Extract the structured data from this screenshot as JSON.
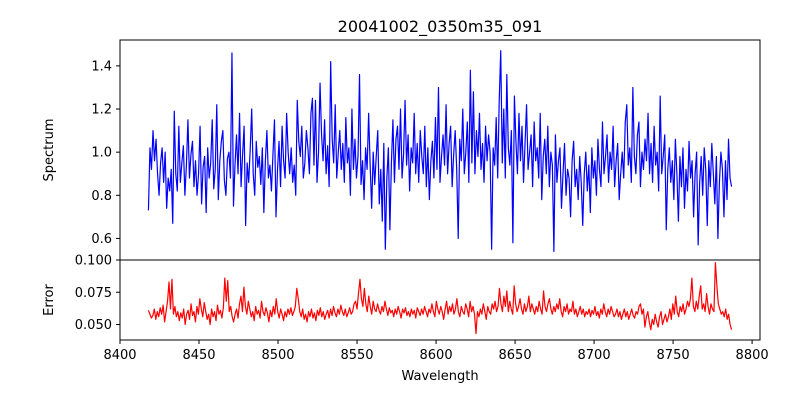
{
  "chart_data": {
    "type": "line",
    "title": "20041002_0350m35_091",
    "xlabel": "Wavelength",
    "xlim": [
      8400,
      8805
    ],
    "x_ticks": [
      8400,
      8450,
      8500,
      8550,
      8600,
      8650,
      8700,
      8750,
      8800
    ],
    "x_tick_labels": [
      "8400",
      "8450",
      "8500",
      "8550",
      "8600",
      "8650",
      "8700",
      "8750",
      "8800"
    ],
    "x_start": 8418,
    "x_end": 8787,
    "grid": false,
    "panels": [
      {
        "name": "spectrum",
        "ylabel": "Spectrum",
        "ylim": [
          0.5,
          1.52
        ],
        "y_ticks": [
          0.6,
          0.8,
          1.0,
          1.2,
          1.4
        ],
        "y_tick_labels": [
          "0.6",
          "0.8",
          "1.0",
          "1.2",
          "1.4"
        ],
        "color": "#0000ff",
        "values": [
          0.73,
          1.02,
          0.92,
          1.1,
          0.96,
          1.06,
          0.9,
          0.8,
          0.95,
          1.02,
          0.86,
          1.0,
          0.74,
          0.88,
          0.82,
          0.92,
          0.67,
          1.19,
          0.9,
          0.82,
          1.12,
          0.86,
          0.95,
          1.03,
          0.8,
          0.94,
          1.15,
          0.88,
          0.99,
          1.05,
          0.84,
          0.96,
          0.8,
          0.9,
          1.12,
          0.76,
          0.93,
          0.98,
          0.72,
          1.02,
          0.88,
          0.95,
          1.15,
          0.83,
          0.92,
          1.22,
          0.78,
          0.96,
          1.05,
          1.1,
          0.87,
          0.8,
          0.97,
          1.0,
          0.88,
          1.46,
          0.75,
          0.94,
          1.08,
          0.9,
          1.18,
          0.84,
          0.99,
          1.12,
          0.66,
          0.95,
          0.86,
          1.01,
          1.2,
          0.9,
          0.8,
          1.05,
          0.93,
          0.98,
          0.85,
          1.02,
          0.72,
          0.96,
          1.1,
          0.88,
          0.94,
          0.82,
          0.99,
          1.15,
          0.7,
          0.92,
          1.05,
          0.84,
          1.12,
          0.96,
          0.88,
          1.18,
          1.0,
          0.9,
          1.02,
          0.86,
          0.94,
          0.8,
          1.24,
          1.05,
          0.98,
          1.12,
          0.88,
          0.95,
          1.1,
          1.02,
          0.9,
          1.18,
          1.25,
          0.94,
          1.24,
          0.86,
          1.0,
          1.32,
          1.08,
          0.96,
          1.15,
          0.9,
          1.03,
          0.84,
          1.42,
          1.06,
          0.95,
          1.22,
          0.88,
          1.0,
          1.1,
          0.92,
          1.04,
          0.86,
          1.16,
          0.95,
          1.02,
          0.8,
          1.2,
          0.92,
          1.06,
          0.88,
          0.98,
          1.36,
          0.85,
          0.96,
          0.78,
          1.02,
          0.92,
          1.18,
          0.94,
          0.74,
          1.0,
          0.85,
          0.98,
          1.1,
          0.76,
          0.92,
          0.68,
          1.04,
          0.55,
          0.88,
          1.02,
          0.64,
          0.95,
          1.15,
          0.86,
          1.06,
          1.12,
          0.92,
          1.2,
          0.88,
          0.99,
          1.24,
          0.94,
          1.08,
          0.82,
          1.02,
          0.95,
          1.18,
          0.9,
          1.04,
          0.86,
          1.1,
          0.98,
          0.9,
          1.12,
          0.84,
          1.02,
          0.78,
          0.96,
          1.05,
          0.88,
          1.16,
          0.92,
          1.3,
          0.86,
          0.98,
          1.08,
          0.94,
          1.22,
          0.9,
          1.04,
          1.12,
          0.84,
          0.99,
          1.1,
          0.92,
          0.6,
          1.06,
          0.96,
          1.2,
          0.9,
          1.0,
          1.14,
          0.86,
          1.38,
          0.95,
          1.28,
          0.9,
          1.1,
          0.98,
          1.18,
          0.92,
          1.04,
          0.86,
          1.12,
          0.96,
          1.08,
          1.0,
          0.55,
          1.02,
          0.94,
          1.16,
          0.88,
          1.24,
          1.47,
          0.95,
          1.2,
          0.88,
          1.36,
          1.02,
          0.94,
          1.1,
          0.58,
          1.26,
          1.05,
          0.9,
          1.18,
          0.96,
          1.12,
          0.86,
          1.04,
          1.22,
          0.92,
          1.0,
          1.08,
          0.84,
          1.14,
          0.96,
          1.02,
          0.88,
          1.18,
          0.78,
          0.98,
          1.06,
          0.9,
          1.12,
          0.84,
          1.0,
          0.94,
          0.54,
          1.08,
          0.86,
          0.96,
          1.02,
          0.74,
          0.9,
          1.04,
          0.8,
          0.92,
          0.88,
          0.7,
          0.96,
          1.05,
          0.84,
          0.92,
          0.78,
          0.98,
          0.86,
          0.66,
          0.9,
          1.0,
          0.82,
          0.94,
          0.72,
          1.02,
          0.88,
          0.96,
          0.8,
          1.06,
          0.92,
          0.84,
          1.14,
          0.9,
          0.98,
          1.08,
          0.86,
          1.0,
          0.92,
          1.12,
          0.84,
          0.96,
          1.04,
          0.78,
          0.9,
          1.0,
          0.88,
          1.14,
          1.22,
          0.94,
          1.02,
          0.86,
          1.3,
          0.98,
          0.9,
          1.08,
          1.14,
          0.84,
          1.0,
          0.92,
          1.06,
          0.96,
          1.18,
          0.9,
          1.04,
          0.86,
          1.12,
          0.94,
          1.0,
          0.82,
          1.26,
          0.9,
          0.98,
          1.08,
          0.64,
          0.92,
          1.02,
          0.86,
          0.96,
          0.78,
          1.06,
          0.9,
          0.68,
          0.98,
          0.84,
          1.02,
          0.74,
          0.92,
          0.82,
          1.05,
          0.88,
          0.96,
          0.7,
          0.9,
          1.0,
          0.57,
          0.86,
          0.98,
          0.8,
          1.02,
          0.92,
          0.66,
          0.96,
          0.84,
          1.04,
          0.9,
          0.76,
          0.98,
          0.6,
          0.86,
          1.0,
          0.92,
          0.7,
          0.96,
          0.78,
          1.06,
          0.88,
          0.84
        ],
        "reference_values": []
      },
      {
        "name": "error",
        "ylabel": "Error",
        "ylim": [
          0.038,
          0.1
        ],
        "y_ticks": [
          0.05,
          0.075,
          0.1
        ],
        "y_tick_labels": [
          "0.050",
          "0.075",
          "0.100"
        ],
        "color": "#ff0000",
        "values": [
          0.061,
          0.058,
          0.055,
          0.057,
          0.062,
          0.054,
          0.06,
          0.056,
          0.063,
          0.058,
          0.065,
          0.052,
          0.06,
          0.068,
          0.083,
          0.062,
          0.085,
          0.058,
          0.064,
          0.056,
          0.06,
          0.053,
          0.059,
          0.055,
          0.062,
          0.05,
          0.058,
          0.061,
          0.054,
          0.066,
          0.057,
          0.06,
          0.052,
          0.064,
          0.058,
          0.07,
          0.062,
          0.056,
          0.067,
          0.06,
          0.054,
          0.058,
          0.05,
          0.062,
          0.056,
          0.06,
          0.053,
          0.065,
          0.058,
          0.061,
          0.055,
          0.063,
          0.086,
          0.068,
          0.084,
          0.06,
          0.064,
          0.056,
          0.052,
          0.058,
          0.062,
          0.055,
          0.066,
          0.072,
          0.06,
          0.079,
          0.064,
          0.058,
          0.068,
          0.062,
          0.056,
          0.06,
          0.053,
          0.064,
          0.058,
          0.061,
          0.055,
          0.068,
          0.06,
          0.057,
          0.063,
          0.059,
          0.052,
          0.061,
          0.056,
          0.064,
          0.058,
          0.07,
          0.06,
          0.055,
          0.062,
          0.058,
          0.053,
          0.06,
          0.056,
          0.062,
          0.058,
          0.063,
          0.057,
          0.06,
          0.064,
          0.078,
          0.07,
          0.06,
          0.056,
          0.062,
          0.054,
          0.058,
          0.052,
          0.06,
          0.056,
          0.062,
          0.055,
          0.059,
          0.053,
          0.061,
          0.057,
          0.063,
          0.056,
          0.06,
          0.054,
          0.058,
          0.061,
          0.055,
          0.062,
          0.057,
          0.064,
          0.059,
          0.056,
          0.062,
          0.058,
          0.065,
          0.06,
          0.057,
          0.062,
          0.056,
          0.059,
          0.063,
          0.058,
          0.06,
          0.066,
          0.068,
          0.062,
          0.074,
          0.085,
          0.07,
          0.064,
          0.078,
          0.066,
          0.06,
          0.072,
          0.064,
          0.058,
          0.068,
          0.062,
          0.06,
          0.066,
          0.061,
          0.058,
          0.064,
          0.06,
          0.068,
          0.062,
          0.057,
          0.063,
          0.059,
          0.061,
          0.056,
          0.062,
          0.058,
          0.064,
          0.06,
          0.055,
          0.062,
          0.059,
          0.063,
          0.057,
          0.06,
          0.056,
          0.062,
          0.058,
          0.061,
          0.055,
          0.063,
          0.06,
          0.057,
          0.062,
          0.058,
          0.064,
          0.06,
          0.056,
          0.062,
          0.059,
          0.066,
          0.06,
          0.056,
          0.068,
          0.062,
          0.058,
          0.064,
          0.06,
          0.054,
          0.062,
          0.068,
          0.058,
          0.064,
          0.06,
          0.066,
          0.058,
          0.062,
          0.07,
          0.06,
          0.056,
          0.064,
          0.06,
          0.058,
          0.066,
          0.062,
          0.056,
          0.068,
          0.06,
          0.064,
          0.058,
          0.043,
          0.06,
          0.056,
          0.062,
          0.058,
          0.066,
          0.06,
          0.054,
          0.064,
          0.06,
          0.058,
          0.066,
          0.062,
          0.068,
          0.06,
          0.064,
          0.078,
          0.066,
          0.06,
          0.072,
          0.064,
          0.076,
          0.06,
          0.068,
          0.062,
          0.058,
          0.08,
          0.066,
          0.06,
          0.064,
          0.07,
          0.062,
          0.058,
          0.066,
          0.06,
          0.064,
          0.072,
          0.06,
          0.066,
          0.062,
          0.058,
          0.064,
          0.06,
          0.068,
          0.062,
          0.058,
          0.076,
          0.064,
          0.06,
          0.066,
          0.07,
          0.062,
          0.058,
          0.064,
          0.06,
          0.066,
          0.062,
          0.07,
          0.06,
          0.056,
          0.064,
          0.06,
          0.066,
          0.058,
          0.062,
          0.06,
          0.068,
          0.058,
          0.062,
          0.056,
          0.06,
          0.064,
          0.058,
          0.062,
          0.056,
          0.06,
          0.058,
          0.062,
          0.056,
          0.061,
          0.058,
          0.064,
          0.057,
          0.06,
          0.055,
          0.062,
          0.058,
          0.066,
          0.06,
          0.056,
          0.062,
          0.058,
          0.064,
          0.06,
          0.056,
          0.058,
          0.062,
          0.056,
          0.06,
          0.054,
          0.058,
          0.062,
          0.056,
          0.06,
          0.054,
          0.058,
          0.062,
          0.057,
          0.055,
          0.06,
          0.058,
          0.064,
          0.066,
          0.058,
          0.062,
          0.048,
          0.056,
          0.06,
          0.052,
          0.046,
          0.054,
          0.05,
          0.058,
          0.052,
          0.048,
          0.056,
          0.06,
          0.05,
          0.054,
          0.058,
          0.052,
          0.056,
          0.062,
          0.054,
          0.066,
          0.058,
          0.072,
          0.06,
          0.056,
          0.064,
          0.06,
          0.066,
          0.058,
          0.062,
          0.068,
          0.064,
          0.07,
          0.086,
          0.064,
          0.06,
          0.068,
          0.062,
          0.072,
          0.08,
          0.062,
          0.066,
          0.06,
          0.074,
          0.064,
          0.058,
          0.066,
          0.062,
          0.06,
          0.098,
          0.08,
          0.066,
          0.062,
          0.058,
          0.06,
          0.056,
          0.062,
          0.054,
          0.058,
          0.05,
          0.046
        ],
        "reference_values": []
      }
    ]
  }
}
